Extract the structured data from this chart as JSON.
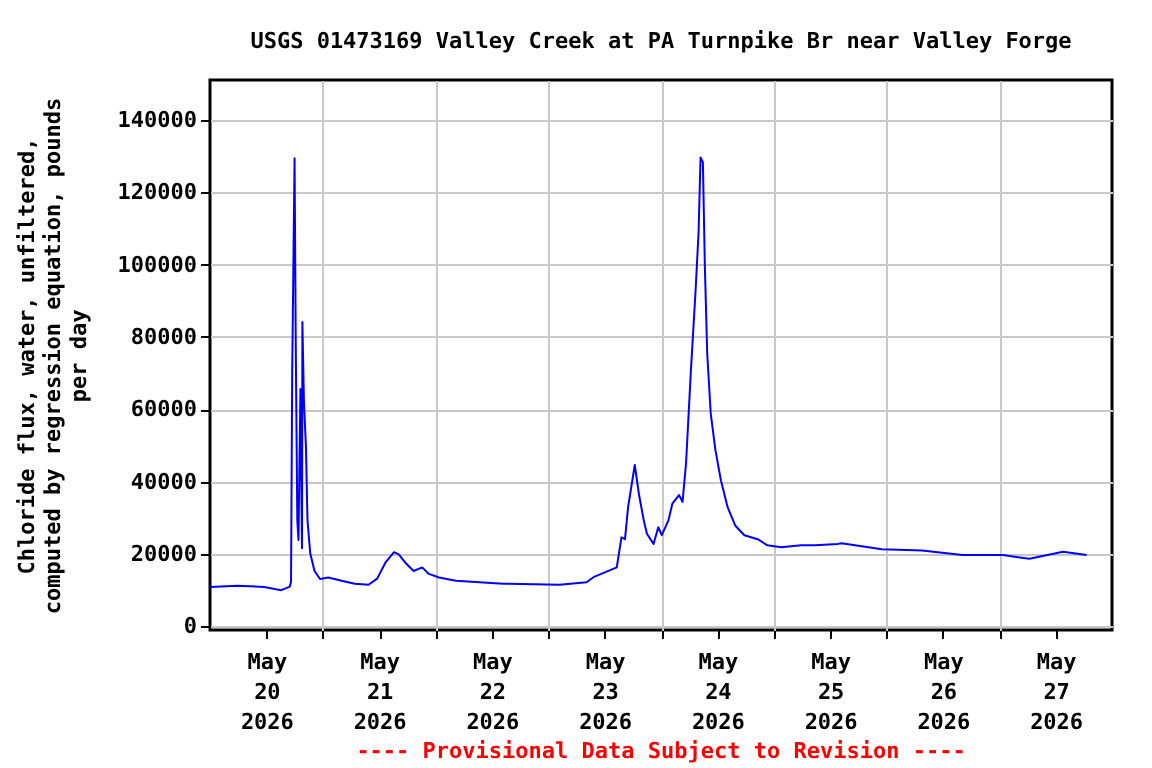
{
  "chart_data": {
    "type": "line",
    "title": "USGS 01473169 Valley Creek at PA Turnpike Br near Valley Forge",
    "ylabel": "Chloride flux, water, unfiltered, computed by regression equation, pounds per day",
    "annotations": [
      "---- Provisional Data Subject to Revision ----"
    ],
    "x": [
      "2026-05-20T00:00",
      "2026-05-20T05:50",
      "2026-05-20T11:30",
      "2026-05-20T15:10",
      "2026-05-20T17:00",
      "2026-05-20T17:15",
      "2026-05-20T17:30",
      "2026-05-20T18:00",
      "2026-05-20T18:15",
      "2026-05-20T18:35",
      "2026-05-20T18:50",
      "2026-05-20T19:15",
      "2026-05-20T19:35",
      "2026-05-20T19:40",
      "2026-05-20T20:00",
      "2026-05-20T20:25",
      "2026-05-20T20:45",
      "2026-05-20T21:20",
      "2026-05-20T22:15",
      "2026-05-20T23:25",
      "2026-05-21T01:10",
      "2026-05-21T04:00",
      "2026-05-21T06:50",
      "2026-05-21T09:45",
      "2026-05-21T11:35",
      "2026-05-21T13:20",
      "2026-05-21T15:10",
      "2026-05-21T16:10",
      "2026-05-21T17:35",
      "2026-05-21T19:20",
      "2026-05-21T21:10",
      "2026-05-21T22:35",
      "2026-05-22T00:45",
      "2026-05-22T04:20",
      "2026-05-22T14:25",
      "2026-05-23T02:25",
      "2026-05-23T08:10",
      "2026-05-23T09:45",
      "2026-05-23T14:35",
      "2026-05-23T15:35",
      "2026-05-23T16:20",
      "2026-05-23T17:00",
      "2026-05-23T18:25",
      "2026-05-23T19:20",
      "2026-05-23T20:20",
      "2026-05-23T21:00",
      "2026-05-23T22:25",
      "2026-05-23T23:25",
      "2026-05-24T00:10",
      "2026-05-24T01:35",
      "2026-05-24T02:25",
      "2026-05-24T03:50",
      "2026-05-24T04:35",
      "2026-05-24T05:20",
      "2026-05-24T06:20",
      "2026-05-24T07:20",
      "2026-05-24T08:00",
      "2026-05-24T08:25",
      "2026-05-24T08:55",
      "2026-05-24T09:20",
      "2026-05-24T09:50",
      "2026-05-24T10:35",
      "2026-05-24T11:35",
      "2026-05-24T12:45",
      "2026-05-24T14:10",
      "2026-05-24T15:50",
      "2026-05-24T17:45",
      "2026-05-24T20:35",
      "2026-05-24T22:40",
      "2026-05-25T01:35",
      "2026-05-25T05:50",
      "2026-05-25T08:45",
      "2026-05-25T13:40",
      "2026-05-25T14:25",
      "2026-05-25T23:00",
      "2026-05-26T07:35",
      "2026-05-26T16:10",
      "2026-05-27T00:45",
      "2026-05-27T06:25",
      "2026-05-27T13:35",
      "2026-05-27T18:35"
    ],
    "series": [
      {
        "color": "#0000ff",
        "values": [
          10900,
          11200,
          10900,
          10000,
          11000,
          12400,
          70500,
          129400,
          78500,
          29400,
          23900,
          65600,
          21600,
          84100,
          61800,
          50000,
          29400,
          20200,
          15300,
          13100,
          13500,
          12600,
          11800,
          11500,
          13200,
          17600,
          20500,
          19900,
          17600,
          15300,
          16300,
          14500,
          13500,
          12600,
          11800,
          11500,
          12200,
          13700,
          16300,
          24600,
          24100,
          33000,
          44600,
          36300,
          29300,
          25600,
          22800,
          27400,
          25200,
          29300,
          33900,
          36300,
          34400,
          45100,
          70000,
          92200,
          108900,
          129600,
          128300,
          99600,
          75500,
          58900,
          48700,
          40400,
          33000,
          27800,
          25200,
          24100,
          22400,
          21900,
          22400,
          22400,
          22800,
          23000,
          21300,
          21000,
          19700,
          19700,
          18700,
          20600,
          19700
        ]
      }
    ],
    "xlim": [
      "2026-05-20T00:00",
      "2026-05-28T00:00"
    ],
    "xticks": [
      {
        "value": "2026-05-20T12:00",
        "label": "May\n20\n2026"
      },
      {
        "value": "2026-05-21T00:00",
        "label": null
      },
      {
        "value": "2026-05-21T12:00",
        "label": "May\n21\n2026"
      },
      {
        "value": "2026-05-22T00:00",
        "label": null
      },
      {
        "value": "2026-05-22T12:00",
        "label": "May\n22\n2026"
      },
      {
        "value": "2026-05-23T00:00",
        "label": null
      },
      {
        "value": "2026-05-23T12:00",
        "label": "May\n23\n2026"
      },
      {
        "value": "2026-05-24T00:00",
        "label": null
      },
      {
        "value": "2026-05-24T12:00",
        "label": "May\n24\n2026"
      },
      {
        "value": "2026-05-25T00:00",
        "label": null
      },
      {
        "value": "2026-05-25T12:00",
        "label": "May\n25\n2026"
      },
      {
        "value": "2026-05-26T00:00",
        "label": null
      },
      {
        "value": "2026-05-26T12:00",
        "label": "May\n26\n2026"
      },
      {
        "value": "2026-05-27T00:00",
        "label": null
      },
      {
        "value": "2026-05-27T12:00",
        "label": "May\n27\n2026"
      }
    ],
    "ylim": [
      -1000,
      151000
    ],
    "yticks": [
      0,
      20000,
      40000,
      60000,
      80000,
      100000,
      120000,
      140000
    ],
    "grid": true,
    "marker": "none",
    "line_style": "solid"
  }
}
